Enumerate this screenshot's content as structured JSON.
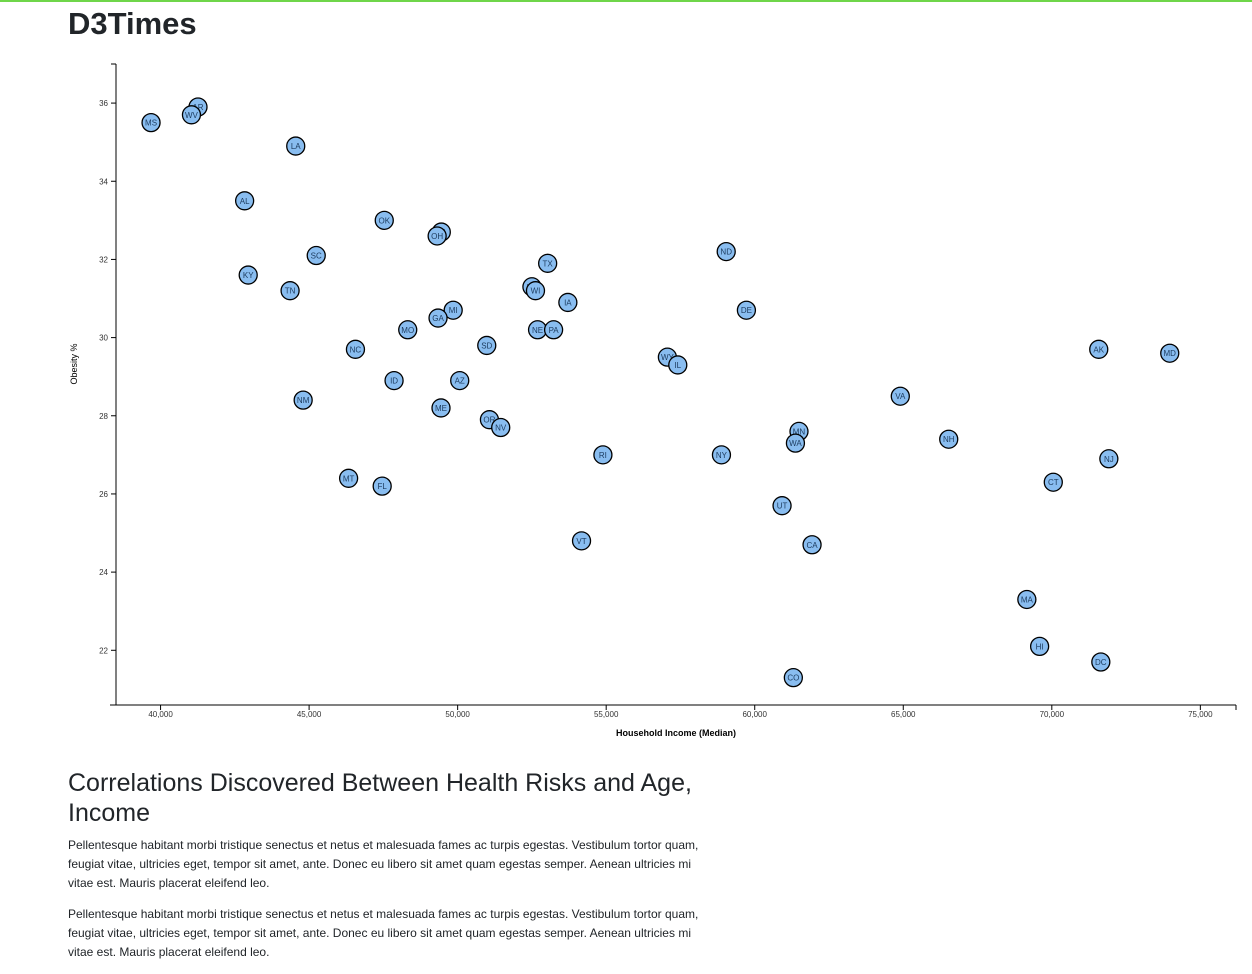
{
  "header": {
    "title": "D3Times"
  },
  "chart_data": {
    "type": "scatter",
    "xlabel": "Household Income (Median)",
    "ylabel": "Obesity %",
    "xlim": [
      38500,
      76200
    ],
    "ylim": [
      20.6,
      37
    ],
    "xticks": [
      40000,
      45000,
      50000,
      55000,
      60000,
      65000,
      70000,
      75000
    ],
    "xtick_labels": [
      "40,000",
      "45,000",
      "50,000",
      "55,000",
      "60,000",
      "65,000",
      "70,000",
      "75,000"
    ],
    "yticks": [
      22,
      24,
      26,
      28,
      30,
      32,
      34,
      36
    ],
    "ytick_labels": [
      "22",
      "24",
      "26",
      "28",
      "30",
      "32",
      "34",
      "36"
    ],
    "marker_color": "#89bdf0",
    "points": [
      {
        "label": "MS",
        "x": 39680,
        "y": 35.5
      },
      {
        "label": "AR",
        "x": 41260,
        "y": 35.9
      },
      {
        "label": "WV",
        "x": 41040,
        "y": 35.7
      },
      {
        "label": "LA",
        "x": 44550,
        "y": 34.9
      },
      {
        "label": "AL",
        "x": 42830,
        "y": 33.5
      },
      {
        "label": "OK",
        "x": 47530,
        "y": 33.0
      },
      {
        "label": "IN",
        "x": 49450,
        "y": 32.7
      },
      {
        "label": "OH",
        "x": 49310,
        "y": 32.6
      },
      {
        "label": "SC",
        "x": 45240,
        "y": 32.1
      },
      {
        "label": "KY",
        "x": 42950,
        "y": 31.6
      },
      {
        "label": "TN",
        "x": 44360,
        "y": 31.2
      },
      {
        "label": "ND",
        "x": 59040,
        "y": 32.2
      },
      {
        "label": "TX",
        "x": 53030,
        "y": 31.9
      },
      {
        "label": "KS",
        "x": 52500,
        "y": 31.3
      },
      {
        "label": "WI",
        "x": 52620,
        "y": 31.2
      },
      {
        "label": "IA",
        "x": 53710,
        "y": 30.9
      },
      {
        "label": "DE",
        "x": 59720,
        "y": 30.7
      },
      {
        "label": "MI",
        "x": 49850,
        "y": 30.7
      },
      {
        "label": "GA",
        "x": 49340,
        "y": 30.5
      },
      {
        "label": "MO",
        "x": 48320,
        "y": 30.2
      },
      {
        "label": "NE",
        "x": 52690,
        "y": 30.2
      },
      {
        "label": "PA",
        "x": 53230,
        "y": 30.2
      },
      {
        "label": "SD",
        "x": 50980,
        "y": 29.8
      },
      {
        "label": "NC",
        "x": 46560,
        "y": 29.7
      },
      {
        "label": "WY",
        "x": 57060,
        "y": 29.5
      },
      {
        "label": "IL",
        "x": 57410,
        "y": 29.3
      },
      {
        "label": "AK",
        "x": 71580,
        "y": 29.7
      },
      {
        "label": "MD",
        "x": 73970,
        "y": 29.6
      },
      {
        "label": "ID",
        "x": 47860,
        "y": 28.9
      },
      {
        "label": "AZ",
        "x": 50070,
        "y": 28.9
      },
      {
        "label": "VA",
        "x": 64900,
        "y": 28.5
      },
      {
        "label": "NM",
        "x": 44800,
        "y": 28.4
      },
      {
        "label": "ME",
        "x": 49440,
        "y": 28.2
      },
      {
        "label": "OR",
        "x": 51070,
        "y": 27.9
      },
      {
        "label": "NV",
        "x": 51450,
        "y": 27.7
      },
      {
        "label": "MN",
        "x": 61490,
        "y": 27.6
      },
      {
        "label": "NH",
        "x": 66530,
        "y": 27.4
      },
      {
        "label": "WA",
        "x": 61370,
        "y": 27.3
      },
      {
        "label": "RI",
        "x": 54890,
        "y": 27.0
      },
      {
        "label": "NY",
        "x": 58880,
        "y": 27.0
      },
      {
        "label": "NJ",
        "x": 71920,
        "y": 26.9
      },
      {
        "label": "MT",
        "x": 46330,
        "y": 26.4
      },
      {
        "label": "CT",
        "x": 70050,
        "y": 26.3
      },
      {
        "label": "FL",
        "x": 47460,
        "y": 26.2
      },
      {
        "label": "UT",
        "x": 60920,
        "y": 25.7
      },
      {
        "label": "VT",
        "x": 54170,
        "y": 24.8
      },
      {
        "label": "CA",
        "x": 61930,
        "y": 24.7
      },
      {
        "label": "MA",
        "x": 69160,
        "y": 23.3
      },
      {
        "label": "HI",
        "x": 69590,
        "y": 22.1
      },
      {
        "label": "DC",
        "x": 71650,
        "y": 21.7
      },
      {
        "label": "CO",
        "x": 61300,
        "y": 21.3
      }
    ]
  },
  "article": {
    "heading": "Correlations Discovered Between Health Risks and Age, Income",
    "paragraphs": [
      "Pellentesque habitant morbi tristique senectus et netus et malesuada fames ac turpis egestas. Vestibulum tortor quam, feugiat vitae, ultricies eget, tempor sit amet, ante. Donec eu libero sit amet quam egestas semper. Aenean ultricies mi vitae est. Mauris placerat eleifend leo.",
      "Pellentesque habitant morbi tristique senectus et netus et malesuada fames ac turpis egestas. Vestibulum tortor quam, feugiat vitae, ultricies eget, tempor sit amet, ante. Donec eu libero sit amet quam egestas semper. Aenean ultricies mi vitae est. Mauris placerat eleifend leo."
    ]
  }
}
